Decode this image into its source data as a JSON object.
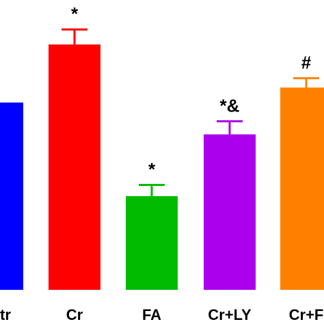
{
  "chart_data": {
    "type": "bar",
    "categories": [
      "Ctr",
      "Cr",
      "FA",
      "Cr+LY",
      "Cr+FA"
    ],
    "visible_labels": [
      "tr",
      "Cr",
      "FA",
      "Cr+LY",
      "Cr+F"
    ],
    "values": [
      100,
      131,
      50,
      83,
      108
    ],
    "errors": [
      0,
      8,
      6,
      7,
      5
    ],
    "annotations": [
      "",
      "*",
      "*",
      "*&",
      "#"
    ],
    "colors": [
      "#0000ff",
      "#ff0000",
      "#00bb00",
      "#aa00ee",
      "#ff8000"
    ],
    "ylim": [
      0,
      160
    ],
    "grid": false,
    "legend": "none"
  }
}
